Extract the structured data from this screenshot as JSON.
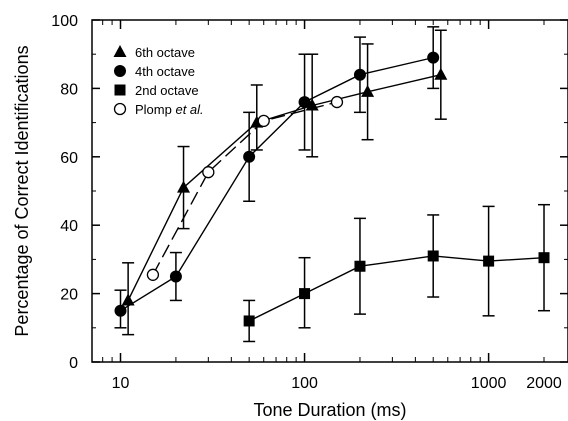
{
  "chart_data": {
    "type": "line",
    "xlabel": "Tone Duration (ms)",
    "ylabel": "Percentage of Correct Identifications",
    "xscale": "log",
    "xlim": [
      7,
      2700
    ],
    "ylim": [
      0,
      100
    ],
    "xticks": [
      10,
      100,
      1000,
      2000
    ],
    "xtick_labels": [
      "10",
      "100",
      "1000",
      "2000"
    ],
    "yticks": [
      0,
      20,
      40,
      60,
      80,
      100
    ],
    "ytick_labels": [
      "0",
      "20",
      "40",
      "60",
      "80",
      "100"
    ],
    "grid": false,
    "legend_position": "top-left",
    "series": [
      {
        "name": "6th octave",
        "marker": "triangle",
        "line": "solid",
        "x": [
          11,
          22,
          55,
          110,
          220,
          550
        ],
        "y": [
          18,
          51,
          70,
          75,
          79,
          84
        ],
        "err_low": [
          10,
          12,
          8,
          15,
          14,
          13
        ],
        "err_high": [
          11,
          12,
          11,
          15,
          14,
          13
        ]
      },
      {
        "name": "4th octave",
        "marker": "filled-circle",
        "line": "solid",
        "x": [
          10,
          20,
          50,
          100,
          200,
          500
        ],
        "y": [
          15,
          25,
          60,
          76,
          84,
          89
        ],
        "err_low": [
          5,
          7,
          13,
          14,
          11,
          9
        ],
        "err_high": [
          6,
          7,
          13,
          14,
          11,
          9
        ]
      },
      {
        "name": "2nd octave",
        "marker": "filled-square",
        "line": "solid",
        "x": [
          50,
          100,
          200,
          500,
          1000,
          2000
        ],
        "y": [
          12,
          20,
          28,
          31,
          29.5,
          30.5
        ],
        "err_low": [
          6,
          10,
          14,
          12,
          16,
          15.5
        ],
        "err_high": [
          6,
          10.5,
          14,
          12,
          16,
          15.5
        ]
      },
      {
        "name": "Plomp et al.",
        "marker": "open-circle",
        "line": "dashed",
        "x": [
          15,
          30,
          60,
          150
        ],
        "y": [
          25.5,
          55.5,
          70.5,
          76
        ],
        "err_low": [],
        "err_high": []
      }
    ],
    "legend": [
      {
        "label": "6th octave",
        "emph": ""
      },
      {
        "label": "4th octave",
        "emph": ""
      },
      {
        "label": "2nd octave",
        "emph": ""
      },
      {
        "label": "Plomp ",
        "emph": "et al."
      }
    ]
  }
}
